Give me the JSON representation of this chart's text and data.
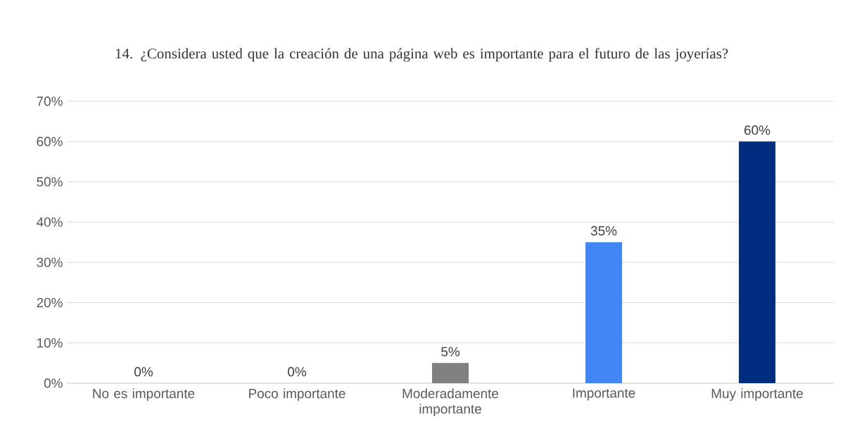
{
  "chart_data": {
    "type": "bar",
    "title": "14. ¿Considera usted que la creación de una página web es importante para el futuro de las joyerías?",
    "categories": [
      "No es importante",
      "Poco importante",
      "Moderadamente importante",
      "Importante",
      "Muy importante"
    ],
    "values": [
      0,
      0,
      5,
      35,
      60
    ],
    "colors": [
      "#808080",
      "#808080",
      "#808080",
      "#4285f4",
      "#002d80"
    ],
    "value_labels": [
      "0%",
      "0%",
      "5%",
      "35%",
      "60%"
    ],
    "ylim": [
      0,
      70
    ],
    "yticks": [
      {
        "value": 0,
        "label": "0%"
      },
      {
        "value": 10,
        "label": "10%"
      },
      {
        "value": 20,
        "label": "20%"
      },
      {
        "value": 30,
        "label": "30%"
      },
      {
        "value": 40,
        "label": "40%"
      },
      {
        "value": 50,
        "label": "50%"
      },
      {
        "value": 60,
        "label": "60%"
      },
      {
        "value": 70,
        "label": "70%"
      }
    ],
    "grid": "y"
  }
}
